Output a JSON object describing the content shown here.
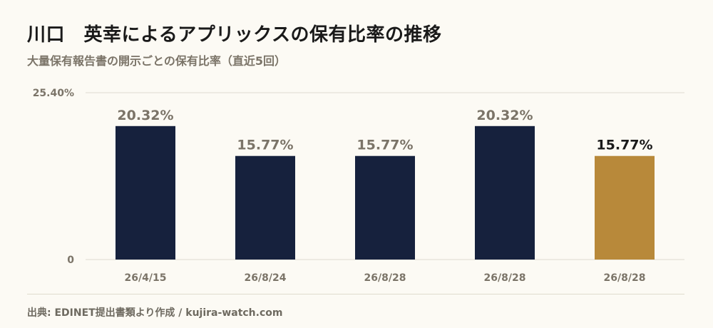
{
  "title": "川口　英幸によるアプリックスの保有比率の推移",
  "subtitle": "大量保有報告書の開示ごとの保有比率（直近5回）",
  "source": "出典: EDINET提出書類より作成 / kujira-watch.com",
  "colors": {
    "bar": "#16213d",
    "highlight": "#b8893a",
    "label": "#7b7468",
    "highlight_label": "#1a1a1a",
    "grid": "#dedad0"
  },
  "chart_data": {
    "type": "bar",
    "categories": [
      "26/4/15",
      "26/8/24",
      "26/8/28",
      "26/8/28",
      "26/8/28"
    ],
    "values": [
      20.32,
      15.77,
      15.77,
      20.32,
      15.77
    ],
    "value_labels": [
      "20.32%",
      "15.77%",
      "15.77%",
      "20.32%",
      "15.77%"
    ],
    "ylim": [
      0,
      25.4
    ],
    "ytick_labels": [
      "0",
      "25.40%"
    ],
    "highlight_index": 4,
    "grid": true,
    "legend": "none"
  }
}
